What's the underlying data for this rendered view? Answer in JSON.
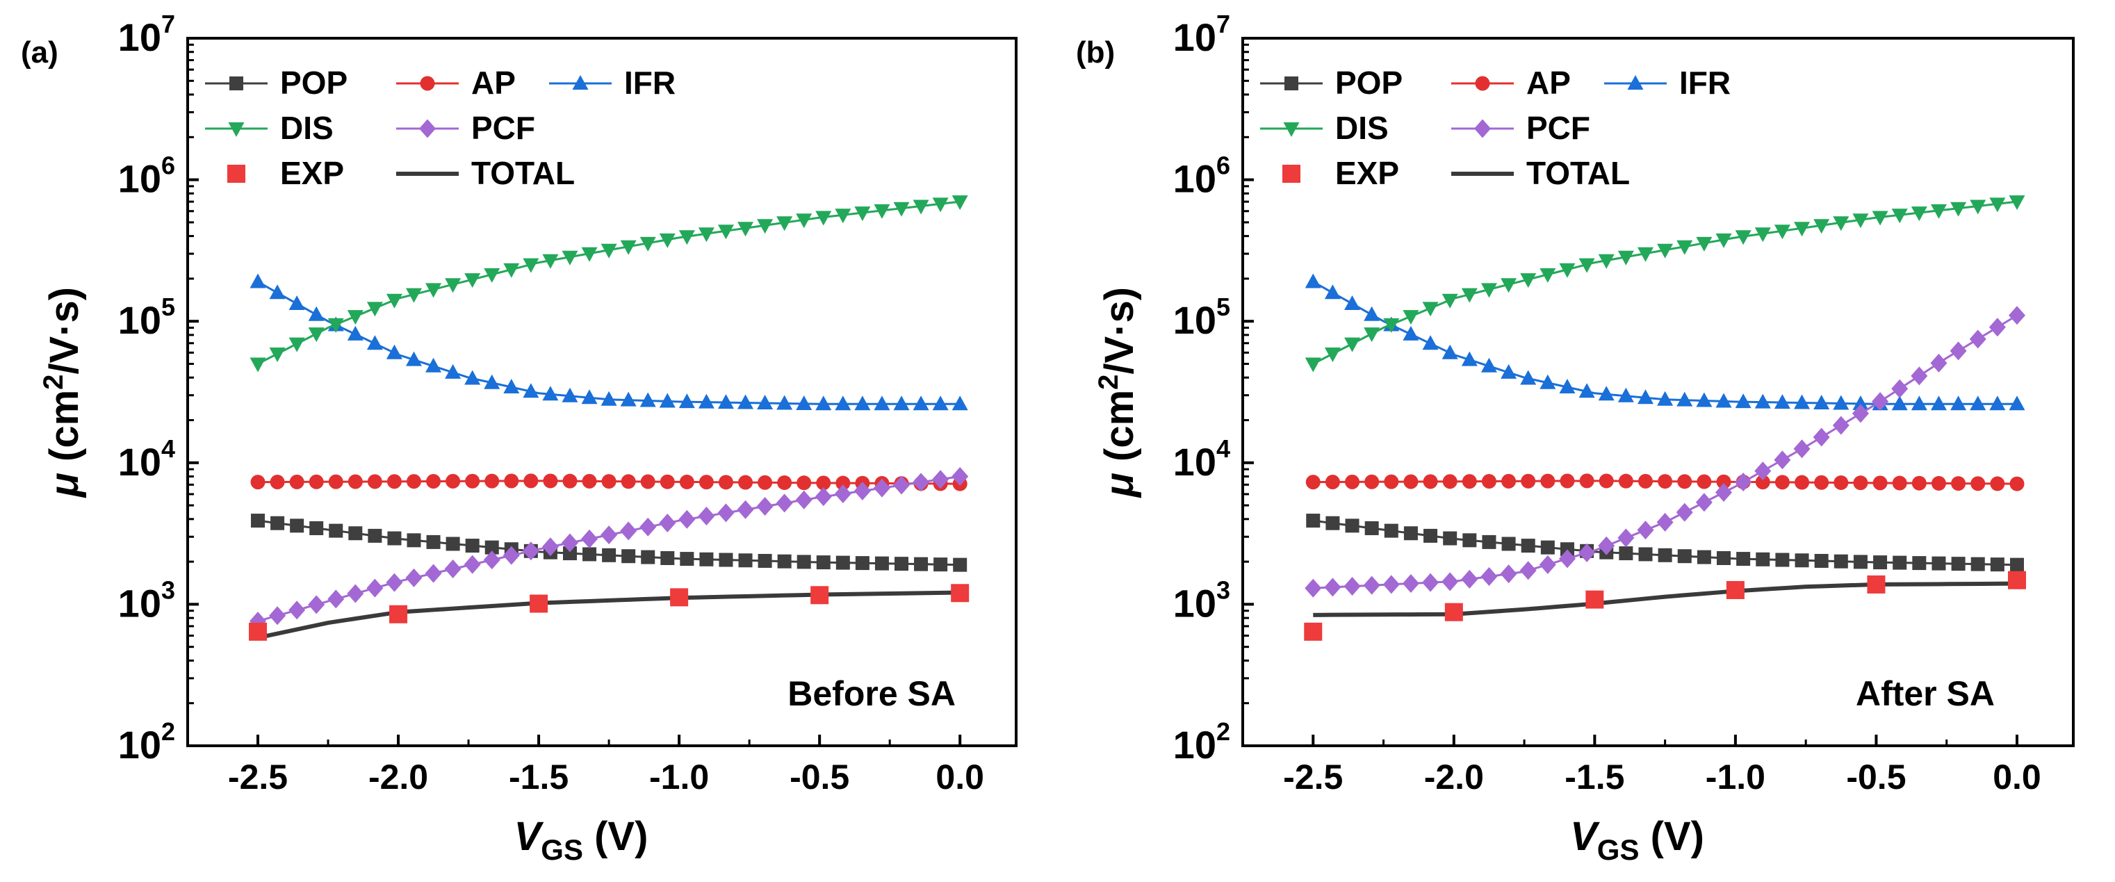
{
  "chart_data": [
    {
      "type": "line",
      "panel_label": "(a)",
      "annotation": "Before SA",
      "xlabel": {
        "main": "V",
        "sub": "GS",
        "rest": " (V)"
      },
      "ylabel": {
        "sym": "μ",
        "pre": " (cm",
        "sup": "2",
        "post": "/V·s)"
      },
      "xlim": [
        -2.75,
        0.2
      ],
      "ylim": [
        100,
        10000000
      ],
      "yscale": "log",
      "xticks": [
        "-2.5",
        "-2.0",
        "-1.5",
        "-1.0",
        "-0.5",
        "0.0"
      ],
      "xtick_values": [
        -2.5,
        -2.0,
        -1.5,
        -1.0,
        -0.5,
        0.0
      ],
      "yticks": [
        {
          "base": "10",
          "exp": "2"
        },
        {
          "base": "10",
          "exp": "3"
        },
        {
          "base": "10",
          "exp": "4"
        },
        {
          "base": "10",
          "exp": "5"
        },
        {
          "base": "10",
          "exp": "6"
        },
        {
          "base": "10",
          "exp": "7"
        }
      ],
      "ytick_values": [
        100,
        1000,
        10000,
        100000,
        1000000,
        10000000
      ],
      "legend": {
        "position": "top-left",
        "entries": [
          "POP",
          "AP",
          "IFR",
          "DIS",
          "PCF",
          "EXP",
          "TOTAL"
        ]
      },
      "series": [
        {
          "name": "POP",
          "color": "#3f3f3f",
          "marker": "square",
          "x_range": [
            -2.5,
            0.0
          ],
          "knots_x": [
            -2.5,
            -2.0,
            -1.5,
            -1.0,
            -0.5,
            0.0
          ],
          "knots_y": [
            3900,
            2900,
            2350,
            2100,
            1980,
            1900
          ]
        },
        {
          "name": "AP",
          "color": "#e23030",
          "marker": "circle",
          "x_range": [
            -2.5,
            0.0
          ],
          "knots_x": [
            -2.5,
            -1.5,
            -0.5,
            0.0
          ],
          "knots_y": [
            7300,
            7450,
            7200,
            7100
          ]
        },
        {
          "name": "IFR",
          "color": "#1a6fd8",
          "marker": "triangle-up",
          "x_range": [
            -2.5,
            0.0
          ],
          "knots_x": [
            -2.5,
            -2.25,
            -2.0,
            -1.75,
            -1.5,
            -1.25,
            -1.0,
            -0.5,
            0.0
          ],
          "knots_y": [
            190000,
            100000,
            58000,
            40000,
            31000,
            28000,
            27000,
            26000,
            26000
          ]
        },
        {
          "name": "DIS",
          "color": "#23a85a",
          "marker": "triangle-down",
          "x_range": [
            -2.5,
            0.0
          ],
          "knots_x": [
            -2.5,
            -2.25,
            -2.0,
            -1.5,
            -1.0,
            -0.5,
            0.0
          ],
          "knots_y": [
            50000,
            90000,
            145000,
            260000,
            390000,
            540000,
            700000
          ]
        },
        {
          "name": "PCF",
          "color": "#a368d4",
          "marker": "diamond",
          "x_range": [
            -2.5,
            0.0
          ],
          "knots_x": [
            -2.5,
            -2.0,
            -1.5,
            -1.0,
            -0.5,
            0.0
          ],
          "knots_y": [
            760,
            1450,
            2450,
            3900,
            5700,
            8000
          ]
        },
        {
          "name": "TOTAL",
          "color": "#3a3a3a",
          "marker": "none",
          "x_range": [
            -2.5,
            0.0
          ],
          "knots_x": [
            -2.5,
            -2.25,
            -2.0,
            -1.5,
            -1.0,
            -0.5,
            0.0
          ],
          "knots_y": [
            580,
            740,
            880,
            1020,
            1110,
            1170,
            1210
          ]
        },
        {
          "name": "EXP",
          "color": "#ee3b3b",
          "marker": "square",
          "points": [
            [
              -2.5,
              640
            ],
            [
              -2.0,
              850
            ],
            [
              -1.5,
              1010
            ],
            [
              -1.0,
              1120
            ],
            [
              -0.5,
              1160
            ],
            [
              0.0,
              1200
            ]
          ]
        }
      ]
    },
    {
      "type": "line",
      "panel_label": "(b)",
      "annotation": "After SA",
      "xlabel": {
        "main": "V",
        "sub": "GS",
        "rest": " (V)"
      },
      "ylabel": {
        "sym": "μ",
        "pre": " (cm",
        "sup": "2",
        "post": "/V·s)"
      },
      "xlim": [
        -2.75,
        0.2
      ],
      "ylim": [
        100,
        10000000
      ],
      "yscale": "log",
      "xticks": [
        "-2.5",
        "-2.0",
        "-1.5",
        "-1.0",
        "-0.5",
        "0.0"
      ],
      "xtick_values": [
        -2.5,
        -2.0,
        -1.5,
        -1.0,
        -0.5,
        0.0
      ],
      "yticks": [
        {
          "base": "10",
          "exp": "2"
        },
        {
          "base": "10",
          "exp": "3"
        },
        {
          "base": "10",
          "exp": "4"
        },
        {
          "base": "10",
          "exp": "5"
        },
        {
          "base": "10",
          "exp": "6"
        },
        {
          "base": "10",
          "exp": "7"
        }
      ],
      "ytick_values": [
        100,
        1000,
        10000,
        100000,
        1000000,
        10000000
      ],
      "legend": {
        "position": "top-left",
        "entries": [
          "POP",
          "AP",
          "IFR",
          "DIS",
          "PCF",
          "EXP",
          "TOTAL"
        ]
      },
      "series": [
        {
          "name": "POP",
          "color": "#3f3f3f",
          "marker": "square",
          "x_range": [
            -2.5,
            0.0
          ],
          "knots_x": [
            -2.5,
            -2.0,
            -1.5,
            -1.0,
            -0.5,
            0.0
          ],
          "knots_y": [
            3900,
            2900,
            2350,
            2100,
            1980,
            1900
          ]
        },
        {
          "name": "AP",
          "color": "#e23030",
          "marker": "circle",
          "x_range": [
            -2.5,
            0.0
          ],
          "knots_x": [
            -2.5,
            -1.5,
            -0.5,
            0.0
          ],
          "knots_y": [
            7300,
            7450,
            7200,
            7100
          ]
        },
        {
          "name": "IFR",
          "color": "#1a6fd8",
          "marker": "triangle-up",
          "x_range": [
            -2.5,
            0.0
          ],
          "knots_x": [
            -2.5,
            -2.25,
            -2.0,
            -1.75,
            -1.5,
            -1.25,
            -1.0,
            -0.5,
            0.0
          ],
          "knots_y": [
            190000,
            100000,
            58000,
            40000,
            31000,
            28000,
            27000,
            26000,
            26000
          ]
        },
        {
          "name": "DIS",
          "color": "#23a85a",
          "marker": "triangle-down",
          "x_range": [
            -2.5,
            0.0
          ],
          "knots_x": [
            -2.5,
            -2.25,
            -2.0,
            -1.5,
            -1.0,
            -0.5,
            0.0
          ],
          "knots_y": [
            50000,
            90000,
            145000,
            260000,
            390000,
            540000,
            700000
          ]
        },
        {
          "name": "PCF",
          "color": "#a368d4",
          "marker": "diamond",
          "x_range": [
            -2.5,
            0.0
          ],
          "knots_x": [
            -2.5,
            -2.0,
            -1.75,
            -1.5,
            -1.25,
            -1.0,
            -0.75,
            -0.5,
            -0.25,
            0.0
          ],
          "knots_y": [
            1300,
            1450,
            1700,
            2400,
            3800,
            6800,
            13000,
            26000,
            55000,
            110000
          ]
        },
        {
          "name": "TOTAL",
          "color": "#3a3a3a",
          "marker": "none",
          "x_range": [
            -2.5,
            0.0
          ],
          "knots_x": [
            -2.5,
            -2.0,
            -1.75,
            -1.5,
            -1.25,
            -1.0,
            -0.75,
            -0.5,
            0.0
          ],
          "knots_y": [
            840,
            850,
            920,
            1010,
            1130,
            1240,
            1330,
            1380,
            1400
          ]
        },
        {
          "name": "EXP",
          "color": "#ee3b3b",
          "marker": "square",
          "points": [
            [
              -2.5,
              640
            ],
            [
              -2.0,
              880
            ],
            [
              -1.5,
              1080
            ],
            [
              -1.0,
              1260
            ],
            [
              -0.5,
              1380
            ],
            [
              0.0,
              1480
            ]
          ]
        }
      ]
    }
  ]
}
